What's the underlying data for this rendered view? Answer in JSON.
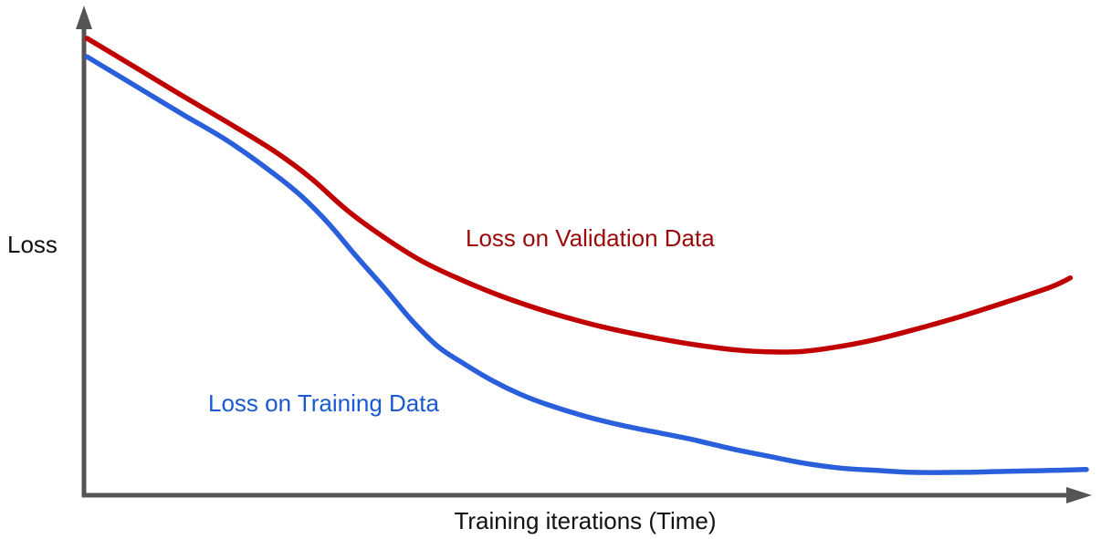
{
  "chart_data": {
    "type": "line",
    "title": "",
    "xlabel": "Training iterations (Time)",
    "ylabel": "Loss",
    "xlim": [
      0,
      100
    ],
    "ylim": [
      0,
      1
    ],
    "grid": false,
    "legend_position": "inline-annotations",
    "axis_color": "#555557",
    "series": [
      {
        "name": "Loss on Validation Data",
        "color": "#c00000",
        "label_color": "#9a0a0a",
        "x": [
          0.3,
          5.3,
          9.8,
          14.4,
          18.9,
          22.6,
          26.2,
          29.9,
          33.5,
          37.2,
          41.7,
          46.3,
          50.8,
          55.4,
          59.9,
          64.5,
          68.1,
          71.8,
          75.4,
          79.1,
          82.7,
          87.2,
          91.8,
          96.4,
          98.4
        ],
        "y": [
          0.94,
          0.878,
          0.822,
          0.766,
          0.709,
          0.653,
          0.587,
          0.531,
          0.484,
          0.447,
          0.409,
          0.377,
          0.351,
          0.33,
          0.313,
          0.3,
          0.295,
          0.296,
          0.306,
          0.321,
          0.34,
          0.366,
          0.396,
          0.428,
          0.447
        ]
      },
      {
        "name": "Loss on Training Data",
        "color": "#2a5fdb",
        "label_color": "#1959d1",
        "x": [
          0.3,
          5.3,
          9.8,
          14.4,
          18.9,
          21.7,
          24.4,
          27.1,
          29.9,
          32.6,
          35.3,
          38.1,
          40.8,
          43.5,
          46.3,
          49.9,
          53.6,
          57.2,
          60.8,
          64.5,
          68.1,
          71.8,
          75.4,
          79.1,
          82.7,
          87.2,
          91.8,
          96.4,
          100
        ],
        "y": [
          0.902,
          0.84,
          0.784,
          0.728,
          0.662,
          0.615,
          0.559,
          0.493,
          0.428,
          0.362,
          0.306,
          0.268,
          0.235,
          0.208,
          0.186,
          0.163,
          0.144,
          0.129,
          0.114,
          0.096,
          0.081,
          0.066,
          0.056,
          0.051,
          0.047,
          0.047,
          0.049,
          0.051,
          0.053
        ]
      }
    ]
  }
}
